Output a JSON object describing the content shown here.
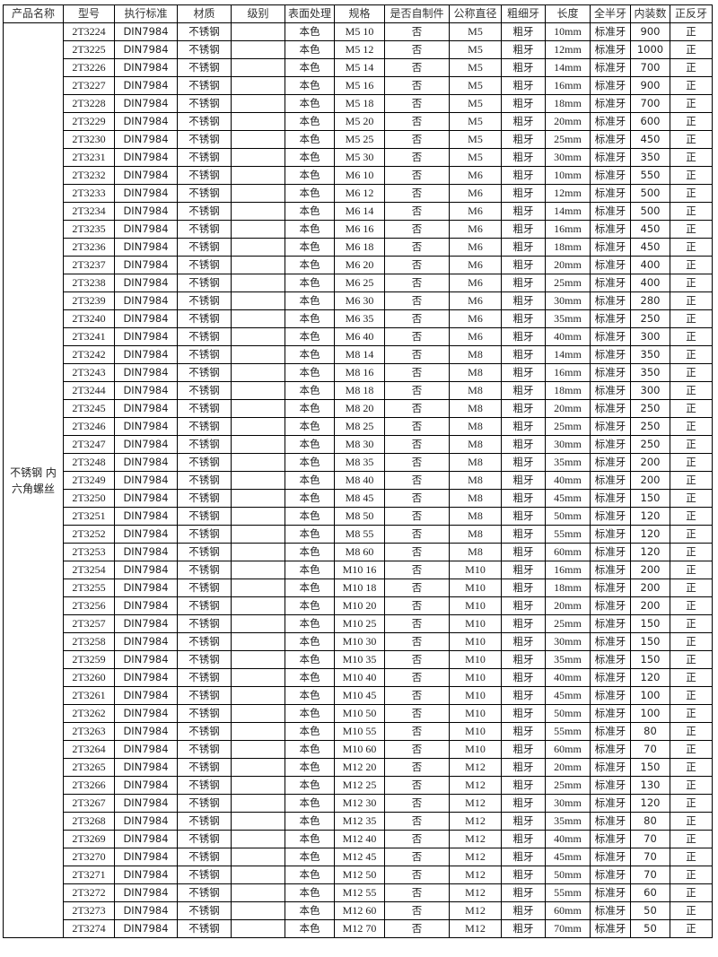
{
  "headers": [
    "产品名称",
    "型号",
    "执行标准",
    "材质",
    "级别",
    "表面处理",
    "规格",
    "是否自制件",
    "公称直径",
    "粗细牙",
    "长度",
    "全半牙",
    "内装数",
    "正反牙"
  ],
  "product_name": "不锈钢 内六角螺丝",
  "rows": [
    {
      "model": "2T3224",
      "std": "DIN7984",
      "material": "不锈钢",
      "grade": "",
      "surface": "本色",
      "spec": "M5 10",
      "self_made": "否",
      "diameter": "M5",
      "thread": "粗牙",
      "length": "10mm",
      "full_half": "标准牙",
      "qty": "900",
      "direction": "正"
    },
    {
      "model": "2T3225",
      "std": "DIN7984",
      "material": "不锈钢",
      "grade": "",
      "surface": "本色",
      "spec": "M5 12",
      "self_made": "否",
      "diameter": "M5",
      "thread": "粗牙",
      "length": "12mm",
      "full_half": "标准牙",
      "qty": "1000",
      "direction": "正"
    },
    {
      "model": "2T3226",
      "std": "DIN7984",
      "material": "不锈钢",
      "grade": "",
      "surface": "本色",
      "spec": "M5 14",
      "self_made": "否",
      "diameter": "M5",
      "thread": "粗牙",
      "length": "14mm",
      "full_half": "标准牙",
      "qty": "700",
      "direction": "正"
    },
    {
      "model": "2T3227",
      "std": "DIN7984",
      "material": "不锈钢",
      "grade": "",
      "surface": "本色",
      "spec": "M5 16",
      "self_made": "否",
      "diameter": "M5",
      "thread": "粗牙",
      "length": "16mm",
      "full_half": "标准牙",
      "qty": "900",
      "direction": "正"
    },
    {
      "model": "2T3228",
      "std": "DIN7984",
      "material": "不锈钢",
      "grade": "",
      "surface": "本色",
      "spec": "M5 18",
      "self_made": "否",
      "diameter": "M5",
      "thread": "粗牙",
      "length": "18mm",
      "full_half": "标准牙",
      "qty": "700",
      "direction": "正"
    },
    {
      "model": "2T3229",
      "std": "DIN7984",
      "material": "不锈钢",
      "grade": "",
      "surface": "本色",
      "spec": "M5 20",
      "self_made": "否",
      "diameter": "M5",
      "thread": "粗牙",
      "length": "20mm",
      "full_half": "标准牙",
      "qty": "600",
      "direction": "正"
    },
    {
      "model": "2T3230",
      "std": "DIN7984",
      "material": "不锈钢",
      "grade": "",
      "surface": "本色",
      "spec": "M5 25",
      "self_made": "否",
      "diameter": "M5",
      "thread": "粗牙",
      "length": "25mm",
      "full_half": "标准牙",
      "qty": "450",
      "direction": "正"
    },
    {
      "model": "2T3231",
      "std": "DIN7984",
      "material": "不锈钢",
      "grade": "",
      "surface": "本色",
      "spec": "M5 30",
      "self_made": "否",
      "diameter": "M5",
      "thread": "粗牙",
      "length": "30mm",
      "full_half": "标准牙",
      "qty": "350",
      "direction": "正"
    },
    {
      "model": "2T3232",
      "std": "DIN7984",
      "material": "不锈钢",
      "grade": "",
      "surface": "本色",
      "spec": "M6 10",
      "self_made": "否",
      "diameter": "M6",
      "thread": "粗牙",
      "length": "10mm",
      "full_half": "标准牙",
      "qty": "550",
      "direction": "正"
    },
    {
      "model": "2T3233",
      "std": "DIN7984",
      "material": "不锈钢",
      "grade": "",
      "surface": "本色",
      "spec": "M6 12",
      "self_made": "否",
      "diameter": "M6",
      "thread": "粗牙",
      "length": "12mm",
      "full_half": "标准牙",
      "qty": "500",
      "direction": "正"
    },
    {
      "model": "2T3234",
      "std": "DIN7984",
      "material": "不锈钢",
      "grade": "",
      "surface": "本色",
      "spec": "M6 14",
      "self_made": "否",
      "diameter": "M6",
      "thread": "粗牙",
      "length": "14mm",
      "full_half": "标准牙",
      "qty": "500",
      "direction": "正"
    },
    {
      "model": "2T3235",
      "std": "DIN7984",
      "material": "不锈钢",
      "grade": "",
      "surface": "本色",
      "spec": "M6 16",
      "self_made": "否",
      "diameter": "M6",
      "thread": "粗牙",
      "length": "16mm",
      "full_half": "标准牙",
      "qty": "450",
      "direction": "正"
    },
    {
      "model": "2T3236",
      "std": "DIN7984",
      "material": "不锈钢",
      "grade": "",
      "surface": "本色",
      "spec": "M6 18",
      "self_made": "否",
      "diameter": "M6",
      "thread": "粗牙",
      "length": "18mm",
      "full_half": "标准牙",
      "qty": "450",
      "direction": "正"
    },
    {
      "model": "2T3237",
      "std": "DIN7984",
      "material": "不锈钢",
      "grade": "",
      "surface": "本色",
      "spec": "M6 20",
      "self_made": "否",
      "diameter": "M6",
      "thread": "粗牙",
      "length": "20mm",
      "full_half": "标准牙",
      "qty": "400",
      "direction": "正"
    },
    {
      "model": "2T3238",
      "std": "DIN7984",
      "material": "不锈钢",
      "grade": "",
      "surface": "本色",
      "spec": "M6 25",
      "self_made": "否",
      "diameter": "M6",
      "thread": "粗牙",
      "length": "25mm",
      "full_half": "标准牙",
      "qty": "400",
      "direction": "正"
    },
    {
      "model": "2T3239",
      "std": "DIN7984",
      "material": "不锈钢",
      "grade": "",
      "surface": "本色",
      "spec": "M6 30",
      "self_made": "否",
      "diameter": "M6",
      "thread": "粗牙",
      "length": "30mm",
      "full_half": "标准牙",
      "qty": "280",
      "direction": "正"
    },
    {
      "model": "2T3240",
      "std": "DIN7984",
      "material": "不锈钢",
      "grade": "",
      "surface": "本色",
      "spec": "M6 35",
      "self_made": "否",
      "diameter": "M6",
      "thread": "粗牙",
      "length": "35mm",
      "full_half": "标准牙",
      "qty": "250",
      "direction": "正"
    },
    {
      "model": "2T3241",
      "std": "DIN7984",
      "material": "不锈钢",
      "grade": "",
      "surface": "本色",
      "spec": "M6 40",
      "self_made": "否",
      "diameter": "M6",
      "thread": "粗牙",
      "length": "40mm",
      "full_half": "标准牙",
      "qty": "300",
      "direction": "正"
    },
    {
      "model": "2T3242",
      "std": "DIN7984",
      "material": "不锈钢",
      "grade": "",
      "surface": "本色",
      "spec": "M8 14",
      "self_made": "否",
      "diameter": "M8",
      "thread": "粗牙",
      "length": "14mm",
      "full_half": "标准牙",
      "qty": "350",
      "direction": "正"
    },
    {
      "model": "2T3243",
      "std": "DIN7984",
      "material": "不锈钢",
      "grade": "",
      "surface": "本色",
      "spec": "M8 16",
      "self_made": "否",
      "diameter": "M8",
      "thread": "粗牙",
      "length": "16mm",
      "full_half": "标准牙",
      "qty": "350",
      "direction": "正"
    },
    {
      "model": "2T3244",
      "std": "DIN7984",
      "material": "不锈钢",
      "grade": "",
      "surface": "本色",
      "spec": "M8 18",
      "self_made": "否",
      "diameter": "M8",
      "thread": "粗牙",
      "length": "18mm",
      "full_half": "标准牙",
      "qty": "300",
      "direction": "正"
    },
    {
      "model": "2T3245",
      "std": "DIN7984",
      "material": "不锈钢",
      "grade": "",
      "surface": "本色",
      "spec": "M8 20",
      "self_made": "否",
      "diameter": "M8",
      "thread": "粗牙",
      "length": "20mm",
      "full_half": "标准牙",
      "qty": "250",
      "direction": "正"
    },
    {
      "model": "2T3246",
      "std": "DIN7984",
      "material": "不锈钢",
      "grade": "",
      "surface": "本色",
      "spec": "M8 25",
      "self_made": "否",
      "diameter": "M8",
      "thread": "粗牙",
      "length": "25mm",
      "full_half": "标准牙",
      "qty": "250",
      "direction": "正"
    },
    {
      "model": "2T3247",
      "std": "DIN7984",
      "material": "不锈钢",
      "grade": "",
      "surface": "本色",
      "spec": "M8 30",
      "self_made": "否",
      "diameter": "M8",
      "thread": "粗牙",
      "length": "30mm",
      "full_half": "标准牙",
      "qty": "250",
      "direction": "正"
    },
    {
      "model": "2T3248",
      "std": "DIN7984",
      "material": "不锈钢",
      "grade": "",
      "surface": "本色",
      "spec": "M8 35",
      "self_made": "否",
      "diameter": "M8",
      "thread": "粗牙",
      "length": "35mm",
      "full_half": "标准牙",
      "qty": "200",
      "direction": "正"
    },
    {
      "model": "2T3249",
      "std": "DIN7984",
      "material": "不锈钢",
      "grade": "",
      "surface": "本色",
      "spec": "M8 40",
      "self_made": "否",
      "diameter": "M8",
      "thread": "粗牙",
      "length": "40mm",
      "full_half": "标准牙",
      "qty": "200",
      "direction": "正"
    },
    {
      "model": "2T3250",
      "std": "DIN7984",
      "material": "不锈钢",
      "grade": "",
      "surface": "本色",
      "spec": "M8 45",
      "self_made": "否",
      "diameter": "M8",
      "thread": "粗牙",
      "length": "45mm",
      "full_half": "标准牙",
      "qty": "150",
      "direction": "正"
    },
    {
      "model": "2T3251",
      "std": "DIN7984",
      "material": "不锈钢",
      "grade": "",
      "surface": "本色",
      "spec": "M8 50",
      "self_made": "否",
      "diameter": "M8",
      "thread": "粗牙",
      "length": "50mm",
      "full_half": "标准牙",
      "qty": "120",
      "direction": "正"
    },
    {
      "model": "2T3252",
      "std": "DIN7984",
      "material": "不锈钢",
      "grade": "",
      "surface": "本色",
      "spec": "M8 55",
      "self_made": "否",
      "diameter": "M8",
      "thread": "粗牙",
      "length": "55mm",
      "full_half": "标准牙",
      "qty": "120",
      "direction": "正"
    },
    {
      "model": "2T3253",
      "std": "DIN7984",
      "material": "不锈钢",
      "grade": "",
      "surface": "本色",
      "spec": "M8 60",
      "self_made": "否",
      "diameter": "M8",
      "thread": "粗牙",
      "length": "60mm",
      "full_half": "标准牙",
      "qty": "120",
      "direction": "正"
    },
    {
      "model": "2T3254",
      "std": "DIN7984",
      "material": "不锈钢",
      "grade": "",
      "surface": "本色",
      "spec": "M10 16",
      "self_made": "否",
      "diameter": "M10",
      "thread": "粗牙",
      "length": "16mm",
      "full_half": "标准牙",
      "qty": "200",
      "direction": "正"
    },
    {
      "model": "2T3255",
      "std": "DIN7984",
      "material": "不锈钢",
      "grade": "",
      "surface": "本色",
      "spec": "M10 18",
      "self_made": "否",
      "diameter": "M10",
      "thread": "粗牙",
      "length": "18mm",
      "full_half": "标准牙",
      "qty": "200",
      "direction": "正"
    },
    {
      "model": "2T3256",
      "std": "DIN7984",
      "material": "不锈钢",
      "grade": "",
      "surface": "本色",
      "spec": "M10 20",
      "self_made": "否",
      "diameter": "M10",
      "thread": "粗牙",
      "length": "20mm",
      "full_half": "标准牙",
      "qty": "200",
      "direction": "正"
    },
    {
      "model": "2T3257",
      "std": "DIN7984",
      "material": "不锈钢",
      "grade": "",
      "surface": "本色",
      "spec": "M10 25",
      "self_made": "否",
      "diameter": "M10",
      "thread": "粗牙",
      "length": "25mm",
      "full_half": "标准牙",
      "qty": "150",
      "direction": "正"
    },
    {
      "model": "2T3258",
      "std": "DIN7984",
      "material": "不锈钢",
      "grade": "",
      "surface": "本色",
      "spec": "M10 30",
      "self_made": "否",
      "diameter": "M10",
      "thread": "粗牙",
      "length": "30mm",
      "full_half": "标准牙",
      "qty": "150",
      "direction": "正"
    },
    {
      "model": "2T3259",
      "std": "DIN7984",
      "material": "不锈钢",
      "grade": "",
      "surface": "本色",
      "spec": "M10 35",
      "self_made": "否",
      "diameter": "M10",
      "thread": "粗牙",
      "length": "35mm",
      "full_half": "标准牙",
      "qty": "150",
      "direction": "正"
    },
    {
      "model": "2T3260",
      "std": "DIN7984",
      "material": "不锈钢",
      "grade": "",
      "surface": "本色",
      "spec": "M10 40",
      "self_made": "否",
      "diameter": "M10",
      "thread": "粗牙",
      "length": "40mm",
      "full_half": "标准牙",
      "qty": "120",
      "direction": "正"
    },
    {
      "model": "2T3261",
      "std": "DIN7984",
      "material": "不锈钢",
      "grade": "",
      "surface": "本色",
      "spec": "M10 45",
      "self_made": "否",
      "diameter": "M10",
      "thread": "粗牙",
      "length": "45mm",
      "full_half": "标准牙",
      "qty": "100",
      "direction": "正"
    },
    {
      "model": "2T3262",
      "std": "DIN7984",
      "material": "不锈钢",
      "grade": "",
      "surface": "本色",
      "spec": "M10 50",
      "self_made": "否",
      "diameter": "M10",
      "thread": "粗牙",
      "length": "50mm",
      "full_half": "标准牙",
      "qty": "100",
      "direction": "正"
    },
    {
      "model": "2T3263",
      "std": "DIN7984",
      "material": "不锈钢",
      "grade": "",
      "surface": "本色",
      "spec": "M10 55",
      "self_made": "否",
      "diameter": "M10",
      "thread": "粗牙",
      "length": "55mm",
      "full_half": "标准牙",
      "qty": "80",
      "direction": "正"
    },
    {
      "model": "2T3264",
      "std": "DIN7984",
      "material": "不锈钢",
      "grade": "",
      "surface": "本色",
      "spec": "M10 60",
      "self_made": "否",
      "diameter": "M10",
      "thread": "粗牙",
      "length": "60mm",
      "full_half": "标准牙",
      "qty": "70",
      "direction": "正"
    },
    {
      "model": "2T3265",
      "std": "DIN7984",
      "material": "不锈钢",
      "grade": "",
      "surface": "本色",
      "spec": "M12 20",
      "self_made": "否",
      "diameter": "M12",
      "thread": "粗牙",
      "length": "20mm",
      "full_half": "标准牙",
      "qty": "150",
      "direction": "正"
    },
    {
      "model": "2T3266",
      "std": "DIN7984",
      "material": "不锈钢",
      "grade": "",
      "surface": "本色",
      "spec": "M12 25",
      "self_made": "否",
      "diameter": "M12",
      "thread": "粗牙",
      "length": "25mm",
      "full_half": "标准牙",
      "qty": "130",
      "direction": "正"
    },
    {
      "model": "2T3267",
      "std": "DIN7984",
      "material": "不锈钢",
      "grade": "",
      "surface": "本色",
      "spec": "M12 30",
      "self_made": "否",
      "diameter": "M12",
      "thread": "粗牙",
      "length": "30mm",
      "full_half": "标准牙",
      "qty": "120",
      "direction": "正"
    },
    {
      "model": "2T3268",
      "std": "DIN7984",
      "material": "不锈钢",
      "grade": "",
      "surface": "本色",
      "spec": "M12 35",
      "self_made": "否",
      "diameter": "M12",
      "thread": "粗牙",
      "length": "35mm",
      "full_half": "标准牙",
      "qty": "80",
      "direction": "正"
    },
    {
      "model": "2T3269",
      "std": "DIN7984",
      "material": "不锈钢",
      "grade": "",
      "surface": "本色",
      "spec": "M12 40",
      "self_made": "否",
      "diameter": "M12",
      "thread": "粗牙",
      "length": "40mm",
      "full_half": "标准牙",
      "qty": "70",
      "direction": "正"
    },
    {
      "model": "2T3270",
      "std": "DIN7984",
      "material": "不锈钢",
      "grade": "",
      "surface": "本色",
      "spec": "M12 45",
      "self_made": "否",
      "diameter": "M12",
      "thread": "粗牙",
      "length": "45mm",
      "full_half": "标准牙",
      "qty": "70",
      "direction": "正"
    },
    {
      "model": "2T3271",
      "std": "DIN7984",
      "material": "不锈钢",
      "grade": "",
      "surface": "本色",
      "spec": "M12 50",
      "self_made": "否",
      "diameter": "M12",
      "thread": "粗牙",
      "length": "50mm",
      "full_half": "标准牙",
      "qty": "70",
      "direction": "正"
    },
    {
      "model": "2T3272",
      "std": "DIN7984",
      "material": "不锈钢",
      "grade": "",
      "surface": "本色",
      "spec": "M12 55",
      "self_made": "否",
      "diameter": "M12",
      "thread": "粗牙",
      "length": "55mm",
      "full_half": "标准牙",
      "qty": "60",
      "direction": "正"
    },
    {
      "model": "2T3273",
      "std": "DIN7984",
      "material": "不锈钢",
      "grade": "",
      "surface": "本色",
      "spec": "M12 60",
      "self_made": "否",
      "diameter": "M12",
      "thread": "粗牙",
      "length": "60mm",
      "full_half": "标准牙",
      "qty": "50",
      "direction": "正"
    },
    {
      "model": "2T3274",
      "std": "DIN7984",
      "material": "不锈钢",
      "grade": "",
      "surface": "本色",
      "spec": "M12 70",
      "self_made": "否",
      "diameter": "M12",
      "thread": "粗牙",
      "length": "70mm",
      "full_half": "标准牙",
      "qty": "50",
      "direction": "正"
    }
  ]
}
